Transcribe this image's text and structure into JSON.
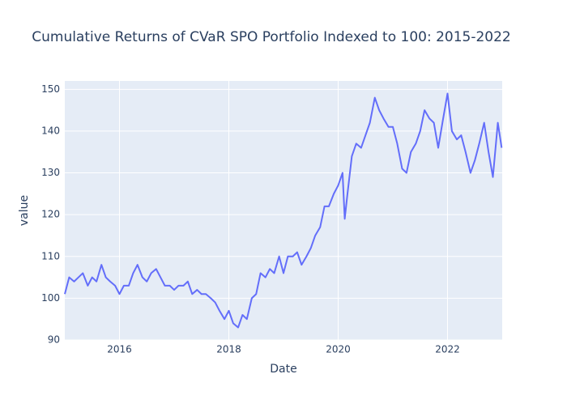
{
  "chart_data": {
    "type": "line",
    "title": "Cumulative Returns of CVaR SPO Portfolio Indexed to 100: 2015-2022",
    "x_label": "Date",
    "y_label": "value",
    "x": [
      2015.0,
      2015.08,
      2015.17,
      2015.25,
      2015.33,
      2015.42,
      2015.5,
      2015.58,
      2015.67,
      2015.75,
      2015.83,
      2015.92,
      2016.0,
      2016.08,
      2016.17,
      2016.25,
      2016.33,
      2016.42,
      2016.5,
      2016.58,
      2016.67,
      2016.75,
      2016.83,
      2016.92,
      2017.0,
      2017.08,
      2017.17,
      2017.25,
      2017.33,
      2017.42,
      2017.5,
      2017.58,
      2017.67,
      2017.75,
      2017.83,
      2017.92,
      2018.0,
      2018.08,
      2018.17,
      2018.25,
      2018.33,
      2018.42,
      2018.5,
      2018.58,
      2018.67,
      2018.75,
      2018.83,
      2018.92,
      2019.0,
      2019.08,
      2019.17,
      2019.25,
      2019.33,
      2019.42,
      2019.5,
      2019.58,
      2019.67,
      2019.75,
      2019.83,
      2019.92,
      2020.0,
      2020.08,
      2020.12,
      2020.17,
      2020.25,
      2020.33,
      2020.42,
      2020.5,
      2020.58,
      2020.67,
      2020.75,
      2020.83,
      2020.92,
      2021.0,
      2021.08,
      2021.17,
      2021.25,
      2021.33,
      2021.42,
      2021.5,
      2021.58,
      2021.67,
      2021.75,
      2021.83,
      2021.92,
      2022.0,
      2022.08,
      2022.17,
      2022.25,
      2022.33,
      2022.42,
      2022.5,
      2022.58,
      2022.67,
      2022.75,
      2022.83,
      2022.92,
      2022.99
    ],
    "series": [
      {
        "name": "value",
        "color": "#636efa",
        "values": [
          101,
          105,
          104,
          105,
          106,
          103,
          105,
          104,
          108,
          105,
          104,
          103,
          101,
          103,
          103,
          106,
          108,
          105,
          104,
          106,
          107,
          105,
          103,
          103,
          102,
          103,
          103,
          104,
          101,
          102,
          101,
          101,
          100,
          99,
          97,
          95,
          97,
          94,
          93,
          96,
          95,
          100,
          101,
          106,
          105,
          107,
          106,
          110,
          106,
          110,
          110,
          111,
          108,
          110,
          112,
          115,
          117,
          122,
          122,
          125,
          127,
          130,
          119,
          125,
          134,
          137,
          136,
          139,
          142,
          148,
          145,
          143,
          141,
          141,
          137,
          131,
          130,
          135,
          137,
          140,
          145,
          143,
          142,
          136,
          143,
          149,
          140,
          138,
          139,
          135,
          130,
          133,
          137,
          142,
          135,
          129,
          142,
          136
        ]
      }
    ],
    "xlim": [
      2015,
      2023
    ],
    "xticks": [
      2016,
      2018,
      2020,
      2022
    ],
    "ylim": [
      90,
      152
    ],
    "yticks": [
      90,
      100,
      110,
      120,
      130,
      140,
      150
    ],
    "grid": true,
    "plot_background": "#e5ecf6"
  }
}
